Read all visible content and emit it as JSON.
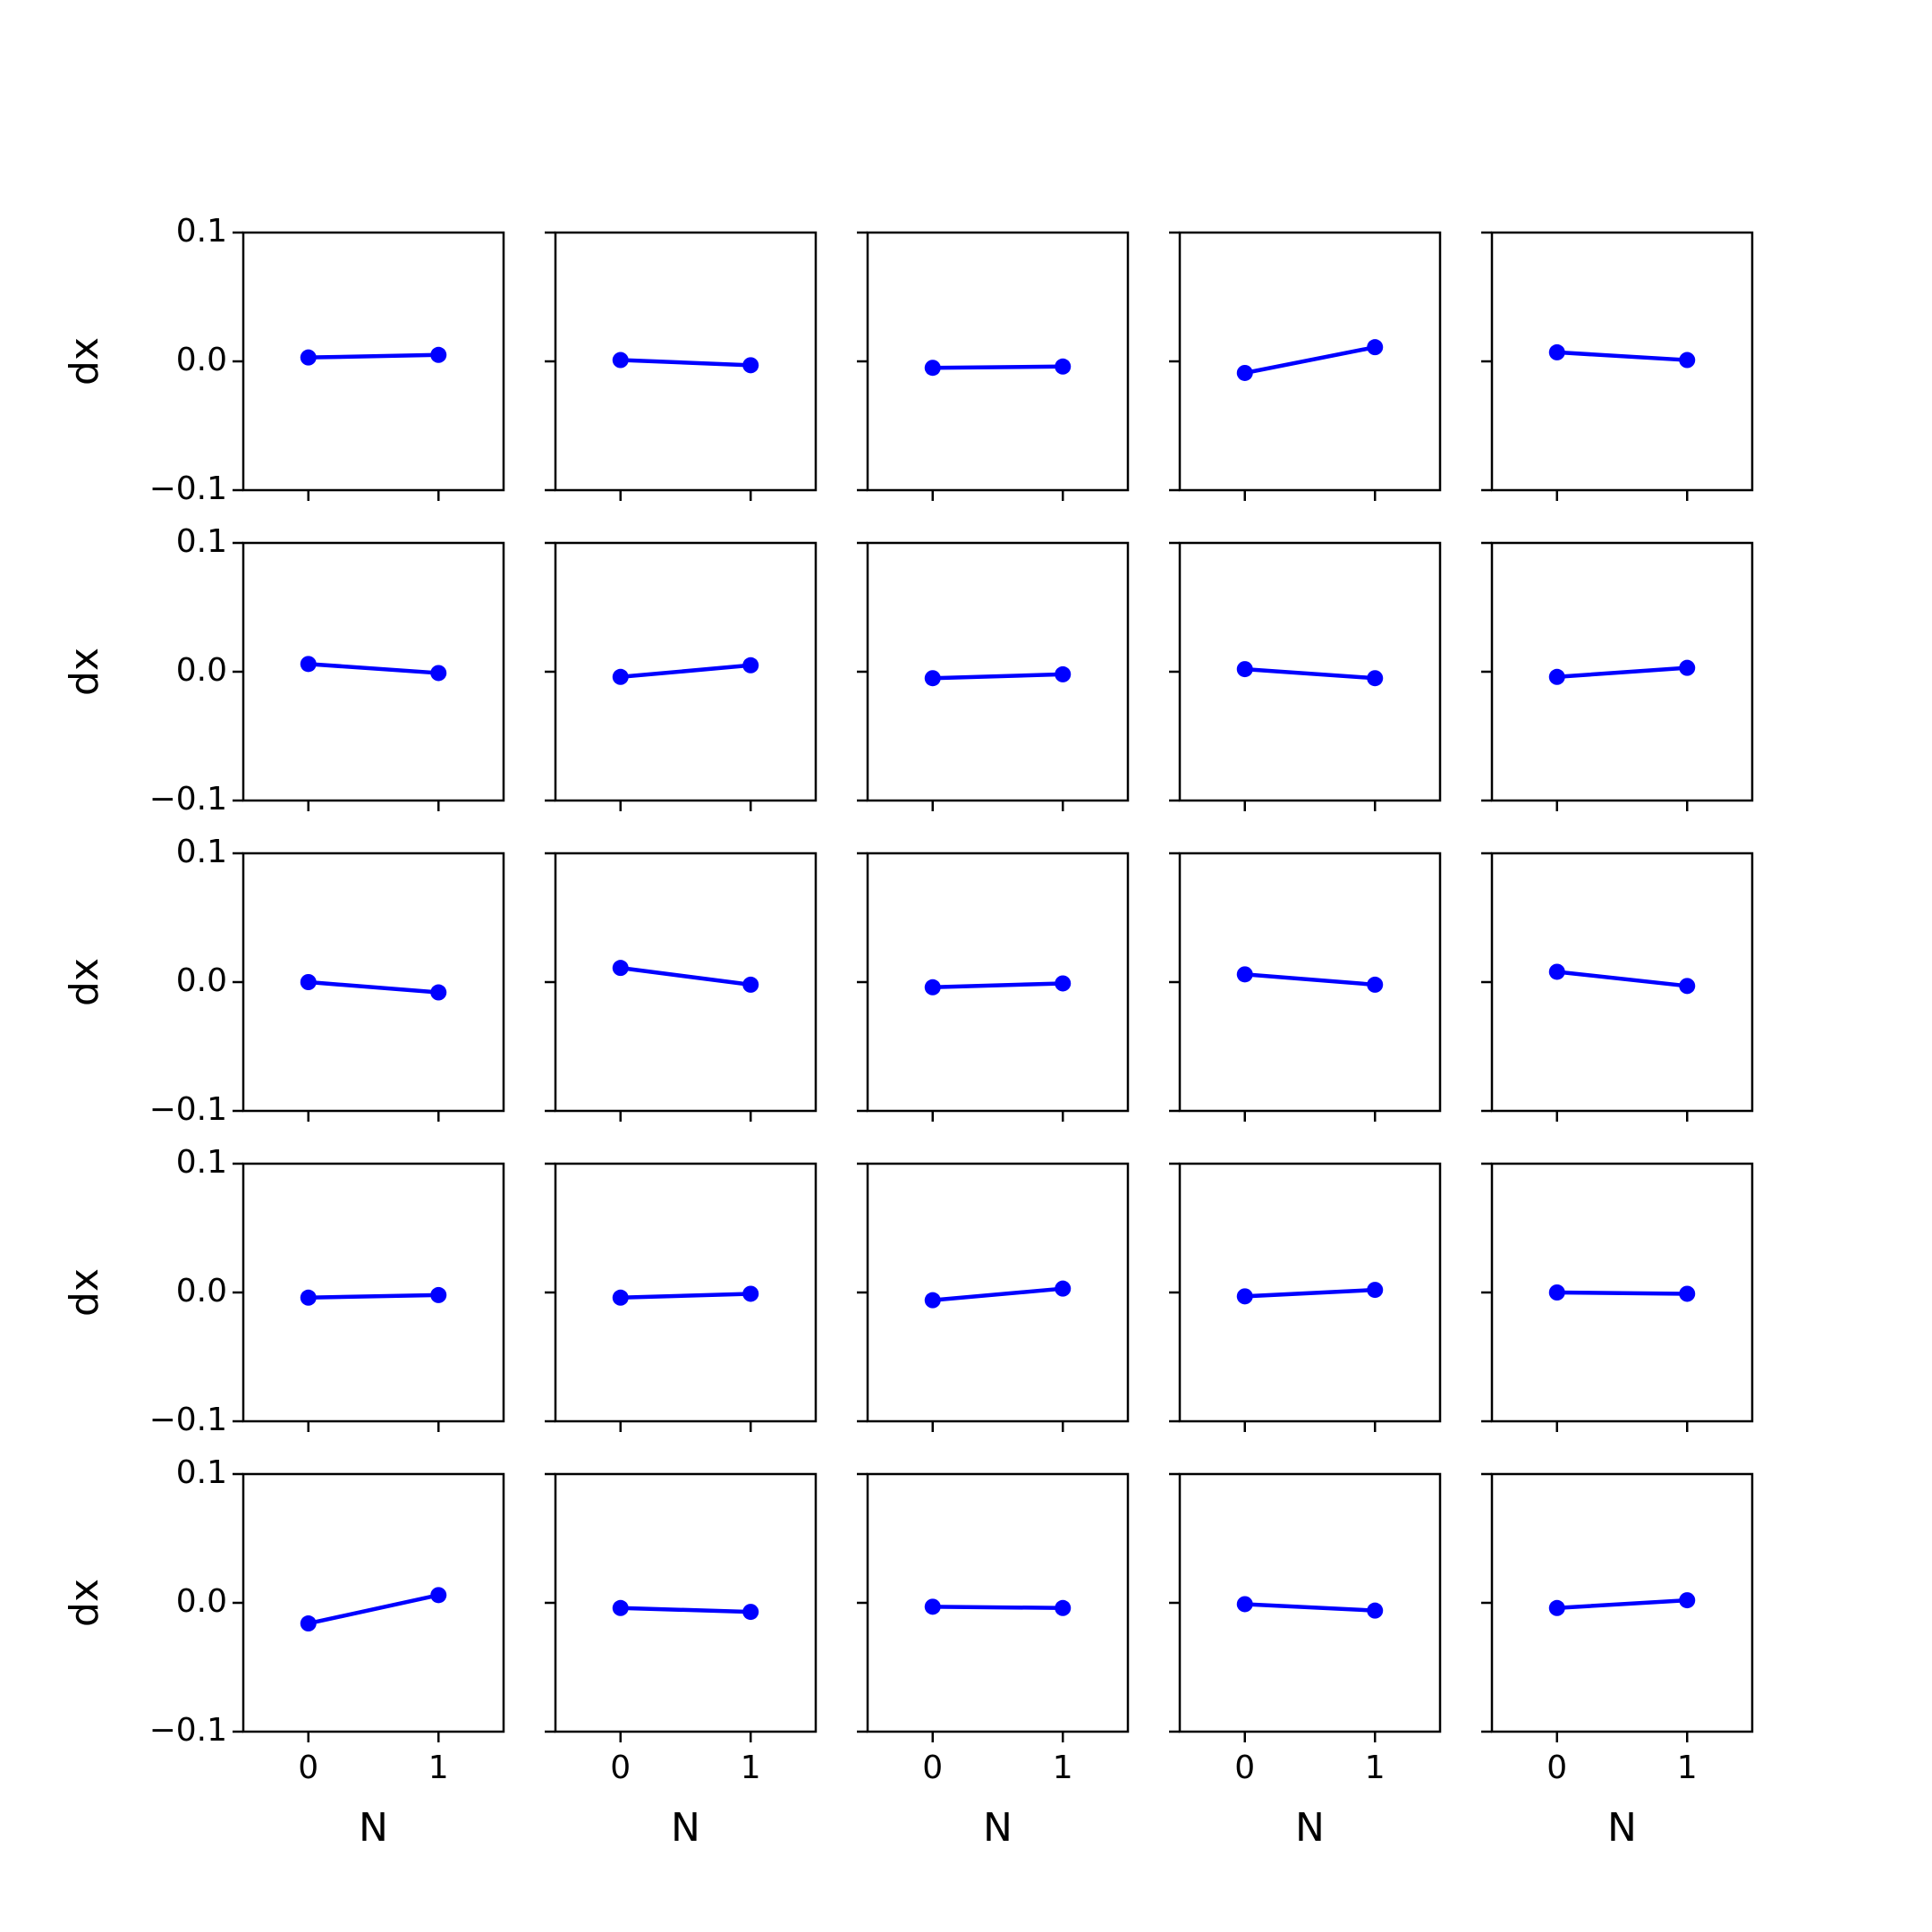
{
  "chart_data": {
    "type": "line",
    "layout": "small-multiples",
    "rows": 5,
    "cols": 5,
    "xlabel": "N",
    "ylabel": "dx",
    "xlim": [
      -0.5,
      1.5
    ],
    "ylim": [
      -0.1,
      0.1
    ],
    "xticks": [
      0,
      1
    ],
    "xtick_labels": [
      "0",
      "1"
    ],
    "yticks": [
      0.1,
      0.0,
      -0.1
    ],
    "ytick_labels": [
      "0.1",
      "0.0",
      "−0.1"
    ],
    "x": [
      0,
      1
    ],
    "line_color": "#0000ff",
    "marker": "circle",
    "grid": false,
    "panels": [
      {
        "row": 1,
        "col": 1,
        "values": [
          0.003,
          0.005
        ]
      },
      {
        "row": 1,
        "col": 2,
        "values": [
          0.001,
          -0.003
        ]
      },
      {
        "row": 1,
        "col": 3,
        "values": [
          -0.005,
          -0.004
        ]
      },
      {
        "row": 1,
        "col": 4,
        "values": [
          -0.009,
          0.011
        ]
      },
      {
        "row": 1,
        "col": 5,
        "values": [
          0.007,
          0.001
        ]
      },
      {
        "row": 2,
        "col": 1,
        "values": [
          0.006,
          -0.001
        ]
      },
      {
        "row": 2,
        "col": 2,
        "values": [
          -0.004,
          0.005
        ]
      },
      {
        "row": 2,
        "col": 3,
        "values": [
          -0.005,
          -0.002
        ]
      },
      {
        "row": 2,
        "col": 4,
        "values": [
          0.002,
          -0.005
        ]
      },
      {
        "row": 2,
        "col": 5,
        "values": [
          -0.004,
          0.003
        ]
      },
      {
        "row": 3,
        "col": 1,
        "values": [
          0.0,
          -0.008
        ]
      },
      {
        "row": 3,
        "col": 2,
        "values": [
          0.011,
          -0.002
        ]
      },
      {
        "row": 3,
        "col": 3,
        "values": [
          -0.004,
          -0.001
        ]
      },
      {
        "row": 3,
        "col": 4,
        "values": [
          0.006,
          -0.002
        ]
      },
      {
        "row": 3,
        "col": 5,
        "values": [
          0.008,
          -0.003
        ]
      },
      {
        "row": 4,
        "col": 1,
        "values": [
          -0.004,
          -0.002
        ]
      },
      {
        "row": 4,
        "col": 2,
        "values": [
          -0.004,
          -0.001
        ]
      },
      {
        "row": 4,
        "col": 3,
        "values": [
          -0.006,
          0.003
        ]
      },
      {
        "row": 4,
        "col": 4,
        "values": [
          -0.003,
          0.002
        ]
      },
      {
        "row": 4,
        "col": 5,
        "values": [
          0.0,
          -0.001
        ]
      },
      {
        "row": 5,
        "col": 1,
        "values": [
          -0.016,
          0.006
        ]
      },
      {
        "row": 5,
        "col": 2,
        "values": [
          -0.004,
          -0.007
        ]
      },
      {
        "row": 5,
        "col": 3,
        "values": [
          -0.003,
          -0.004
        ]
      },
      {
        "row": 5,
        "col": 4,
        "values": [
          -0.001,
          -0.006
        ]
      },
      {
        "row": 5,
        "col": 5,
        "values": [
          -0.004,
          0.002
        ]
      }
    ]
  }
}
